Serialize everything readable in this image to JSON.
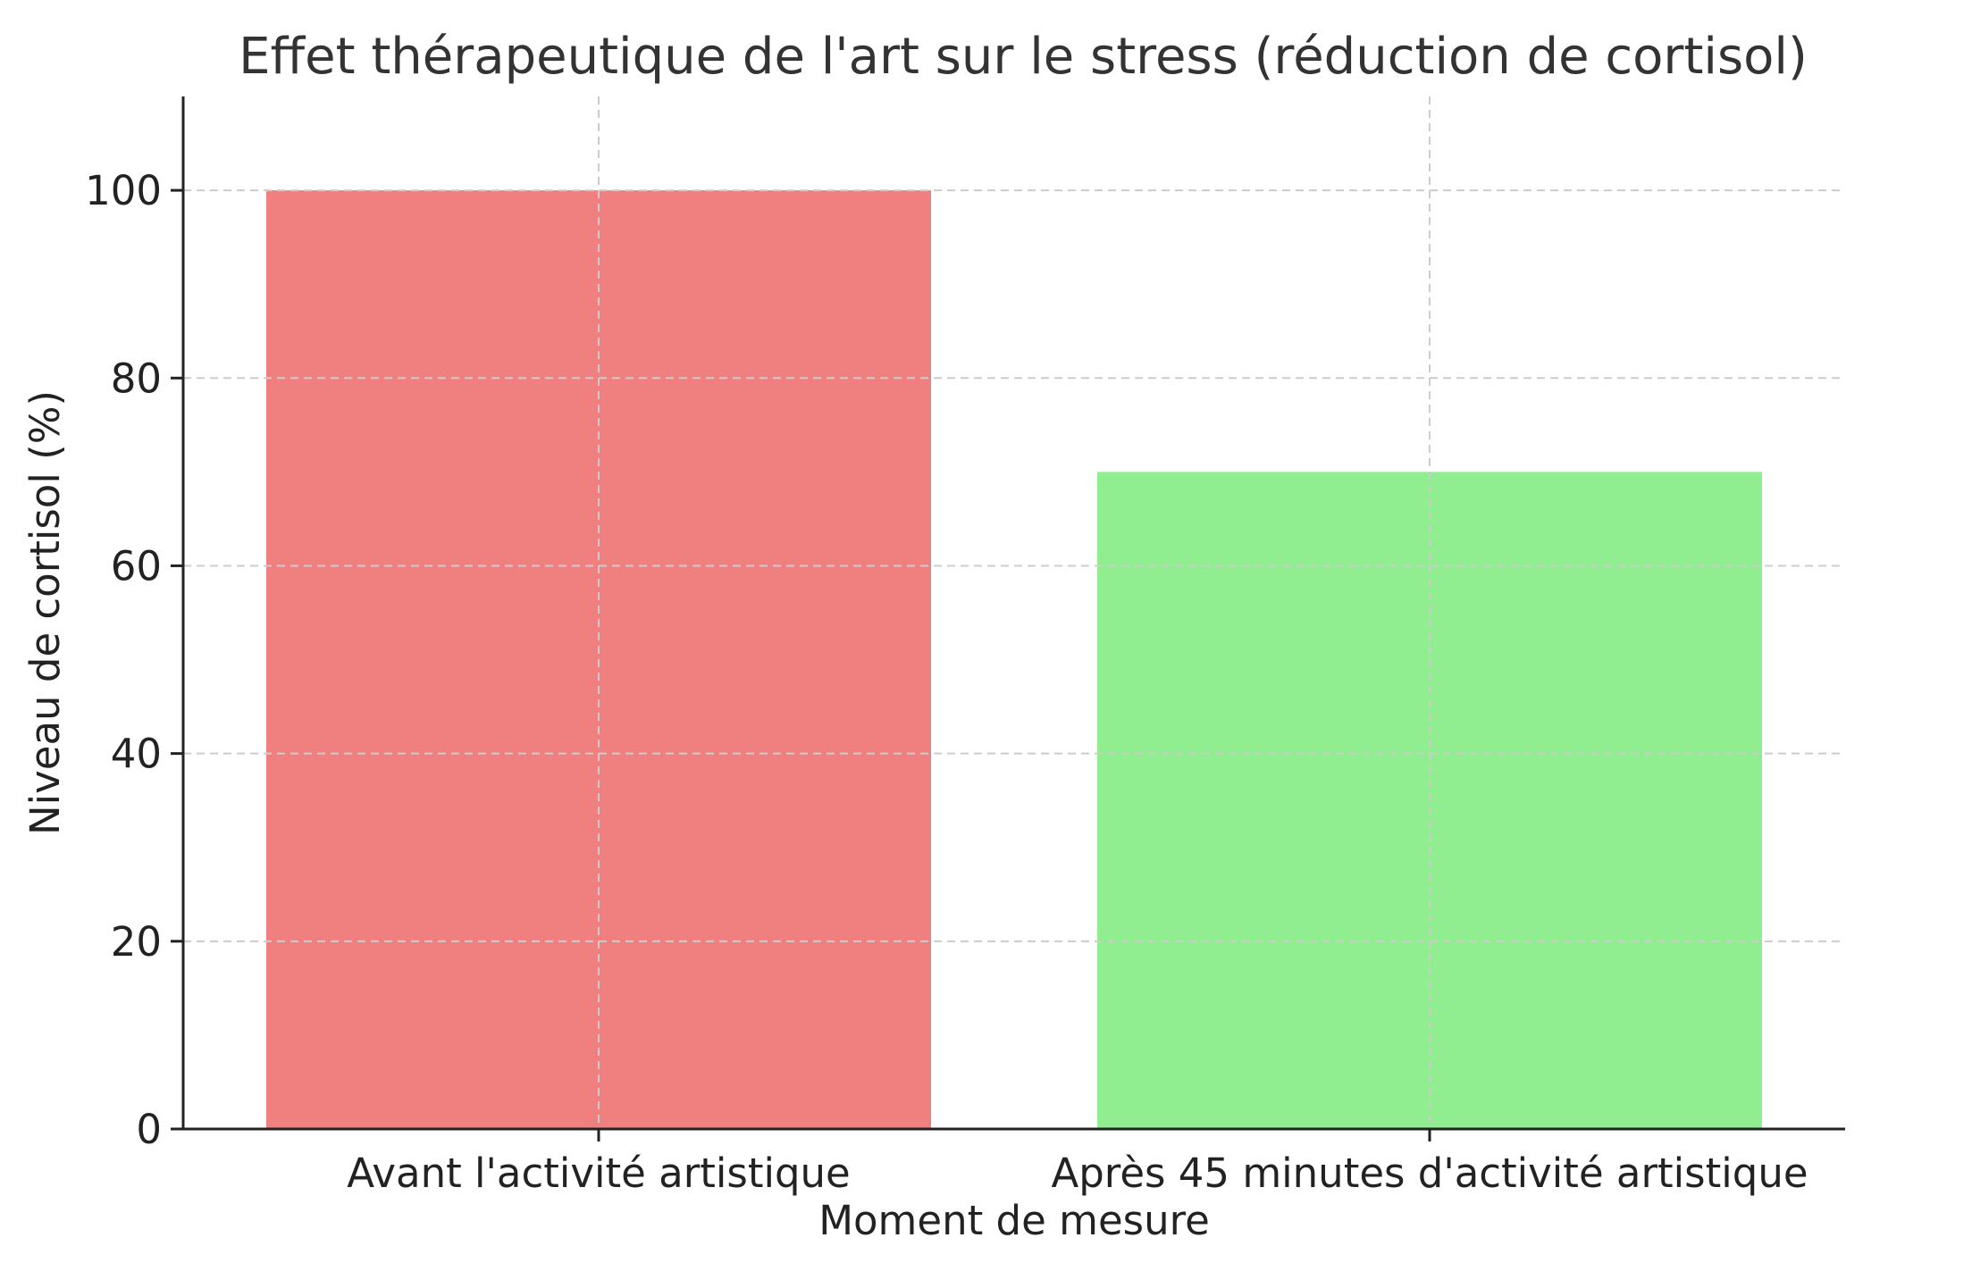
{
  "chart_data": {
    "type": "bar",
    "title": "Effet thérapeutique de l'art sur le stress (réduction de cortisol)",
    "xlabel": "Moment de mesure",
    "ylabel": "Niveau de cortisol (%)",
    "categories": [
      "Avant l'activité artistique",
      "Après 45 minutes d'activité artistique"
    ],
    "values": [
      100,
      70
    ],
    "colors": [
      "#f08080",
      "#90ee90"
    ],
    "ylim": [
      0,
      110
    ],
    "yticks": [
      0,
      20,
      40,
      60,
      80,
      100
    ],
    "grid": true
  }
}
